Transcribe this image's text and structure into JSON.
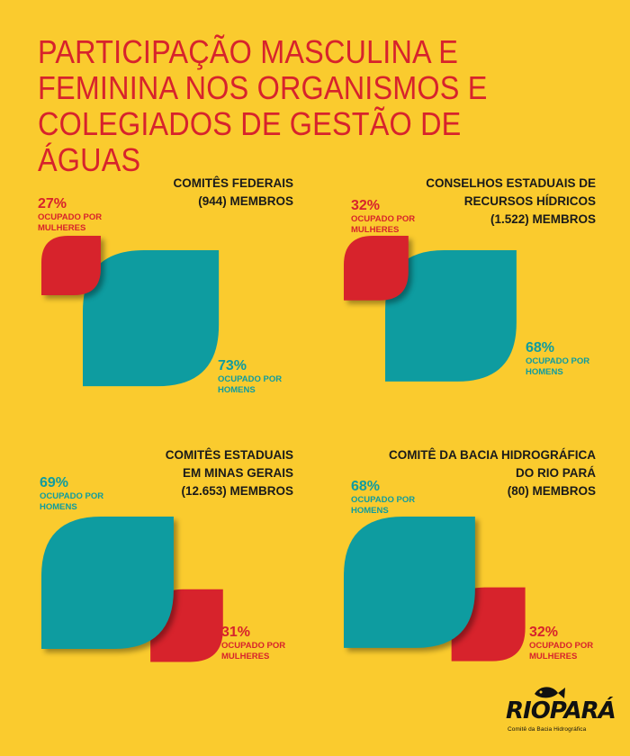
{
  "title": "PARTICIPAÇÃO MASCULINA E FEMININA NOS ORGANISMOS E COLEGIADOS DE GESTÃO DE ÁGUAS",
  "colors": {
    "background": "#FACB2E",
    "women": "#D7232C",
    "men": "#0E9CA0",
    "title": "#D7232C"
  },
  "chart_data": [
    {
      "type": "area-comparison",
      "heading": [
        "COMITÊS  FEDERAIS",
        "(944) MEMBROS"
      ],
      "series": [
        {
          "name": "OCUPADO POR MULHERES",
          "value": 27,
          "value_label": "27%",
          "sub_label": [
            "OCUPADO POR",
            "MULHERES"
          ],
          "color": "#D7232C"
        },
        {
          "name": "OCUPADO POR HOMENS",
          "value": 73,
          "value_label": "73%",
          "sub_label": [
            "OCUPADO POR",
            "HOMENS"
          ],
          "color": "#0E9CA0"
        }
      ]
    },
    {
      "type": "area-comparison",
      "heading": [
        "CONSELHOS ESTADUAIS DE",
        "RECURSOS HÍDRICOS",
        "(1.522) MEMBROS"
      ],
      "series": [
        {
          "name": "OCUPADO POR MULHERES",
          "value": 32,
          "value_label": "32%",
          "sub_label": [
            "OCUPADO POR",
            "MULHERES"
          ],
          "color": "#D7232C"
        },
        {
          "name": "OCUPADO POR HOMENS",
          "value": 68,
          "value_label": "68%",
          "sub_label": [
            "OCUPADO POR",
            "HOMENS"
          ],
          "color": "#0E9CA0"
        }
      ]
    },
    {
      "type": "area-comparison",
      "heading": [
        "COMITÊS  ESTADUAIS",
        "EM MINAS GERAIS",
        "(12.653) MEMBROS"
      ],
      "series": [
        {
          "name": "OCUPADO POR HOMENS",
          "value": 69,
          "value_label": "69%",
          "sub_label": [
            "OCUPADO POR",
            "HOMENS"
          ],
          "color": "#0E9CA0"
        },
        {
          "name": "OCUPADO POR MULHERES",
          "value": 31,
          "value_label": "31%",
          "sub_label": [
            "OCUPADO POR",
            "MULHERES"
          ],
          "color": "#D7232C"
        }
      ]
    },
    {
      "type": "area-comparison",
      "heading": [
        "COMITÊ DA BACIA HIDROGRÁFICA",
        "DO RIO PARÁ",
        "(80) MEMBROS"
      ],
      "series": [
        {
          "name": "OCUPADO POR HOMENS",
          "value": 68,
          "value_label": "68%",
          "sub_label": [
            "OCUPADO POR",
            "HOMENS"
          ],
          "color": "#0E9CA0"
        },
        {
          "name": "OCUPADO POR MULHERES",
          "value": 32,
          "value_label": "32%",
          "sub_label": [
            "OCUPADO POR",
            "MULHERES"
          ],
          "color": "#D7232C"
        }
      ]
    }
  ],
  "logo": {
    "wordmark": "RIOPARÁ",
    "tagline": "Comitê da Bacia Hidrográfica",
    "icon": "fish-icon"
  }
}
